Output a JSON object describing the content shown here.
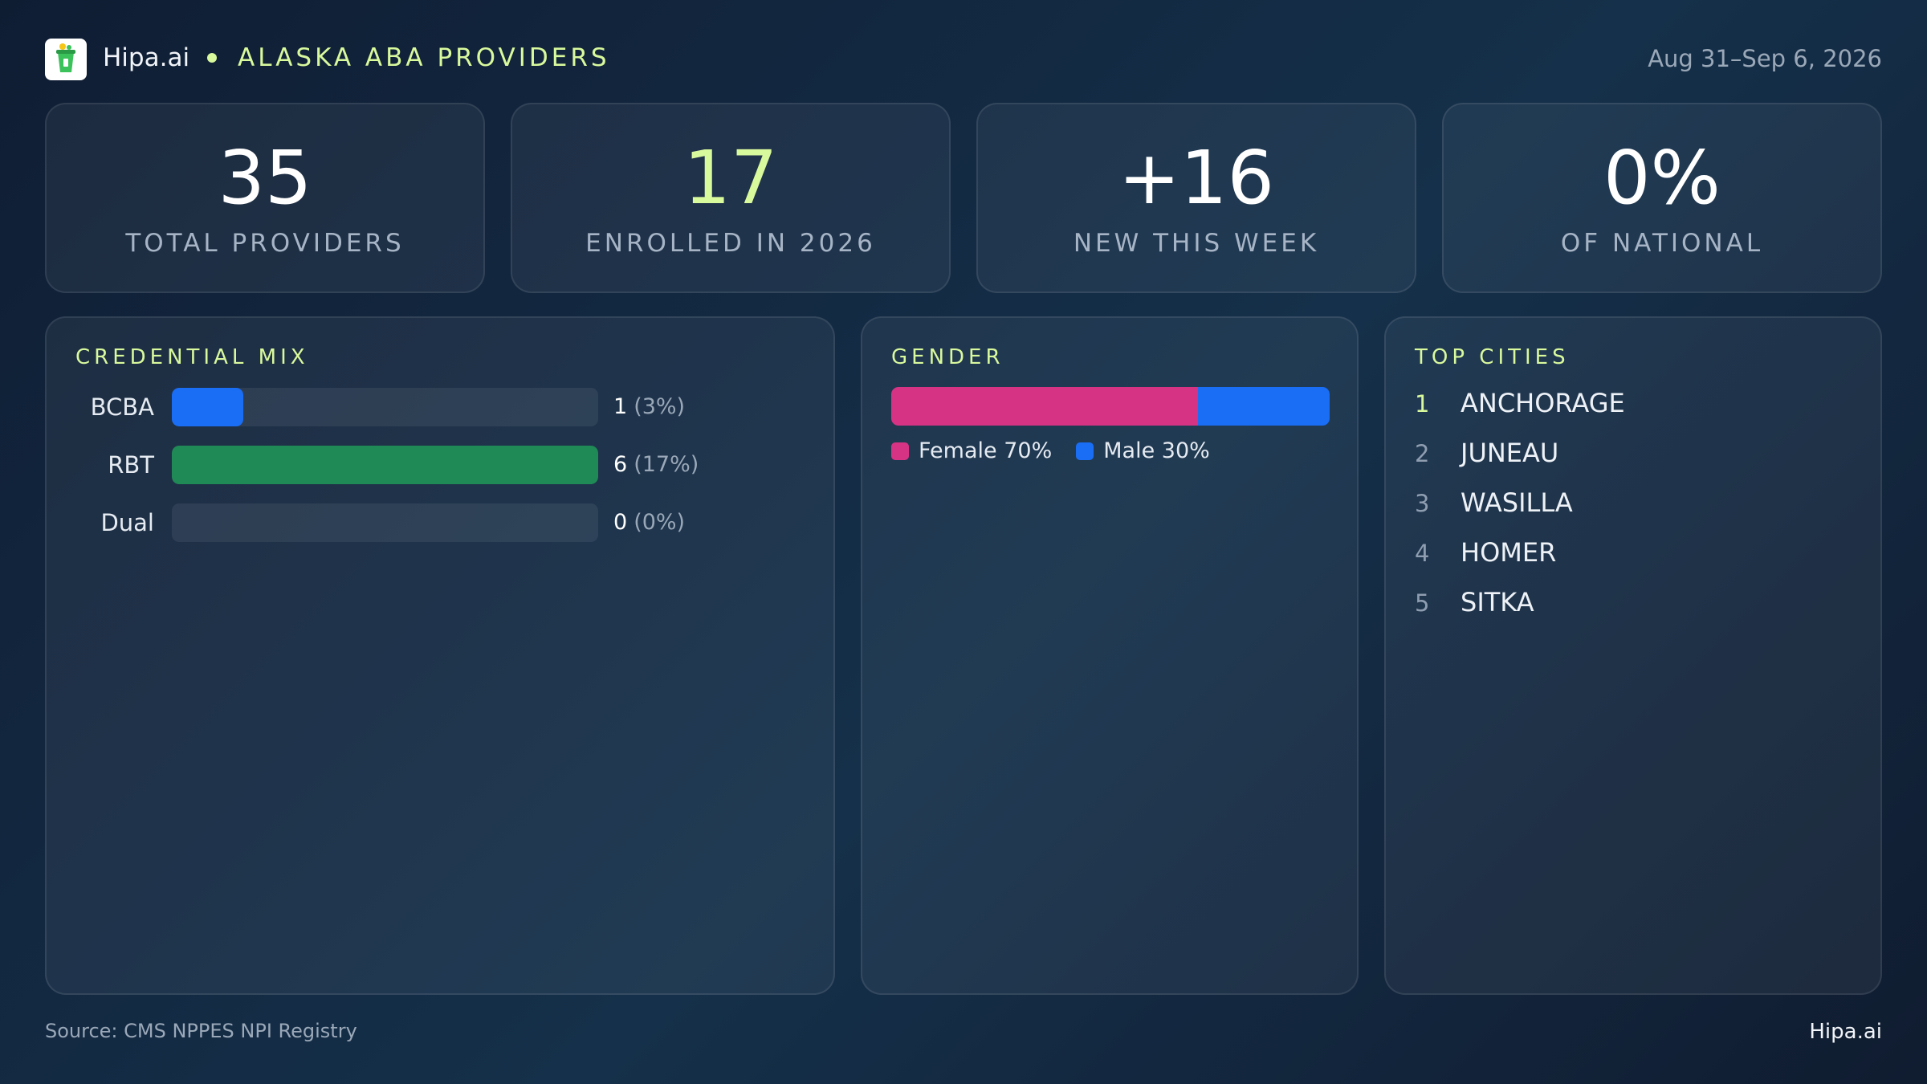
{
  "header": {
    "brand": "Hipa.ai",
    "title": "ALASKA ABA PROVIDERS",
    "date_range": "Aug 31–Sep 6, 2026"
  },
  "stats": [
    {
      "value": "35",
      "label": "TOTAL PROVIDERS",
      "color": "#ffffff"
    },
    {
      "value": "17",
      "label": "ENROLLED IN 2026",
      "color": "#d9f99d"
    },
    {
      "value": "+16",
      "label": "NEW THIS WEEK",
      "color": "#ffffff"
    },
    {
      "value": "0%",
      "label": "OF NATIONAL",
      "color": "#ffffff"
    }
  ],
  "credential_mix": {
    "title": "CREDENTIAL MIX",
    "rows": [
      {
        "name": "BCBA",
        "value": 1,
        "percent_label": "(3%)",
        "color": "#1a6ef5"
      },
      {
        "name": "RBT",
        "value": 6,
        "percent_label": "(17%)",
        "color": "#1f8a55"
      },
      {
        "name": "Dual",
        "value": 0,
        "percent_label": "(0%)",
        "color": "#8b5cf6"
      }
    ]
  },
  "gender": {
    "title": "GENDER",
    "segments": [
      {
        "name": "Female",
        "value": 70,
        "value_label": "70%",
        "color": "#d63384"
      },
      {
        "name": "Male",
        "value": 30,
        "value_label": "30%",
        "color": "#1a6ef5"
      }
    ]
  },
  "top_cities": {
    "title": "TOP CITIES",
    "items": [
      {
        "rank": 1,
        "name": "ANCHORAGE"
      },
      {
        "rank": 2,
        "name": "JUNEAU"
      },
      {
        "rank": 3,
        "name": "WASILLA"
      },
      {
        "rank": 4,
        "name": "HOMER"
      },
      {
        "rank": 5,
        "name": "SITKA"
      }
    ]
  },
  "footer": {
    "source": "Source: CMS NPPES NPI Registry",
    "brand": "Hipa.ai"
  }
}
